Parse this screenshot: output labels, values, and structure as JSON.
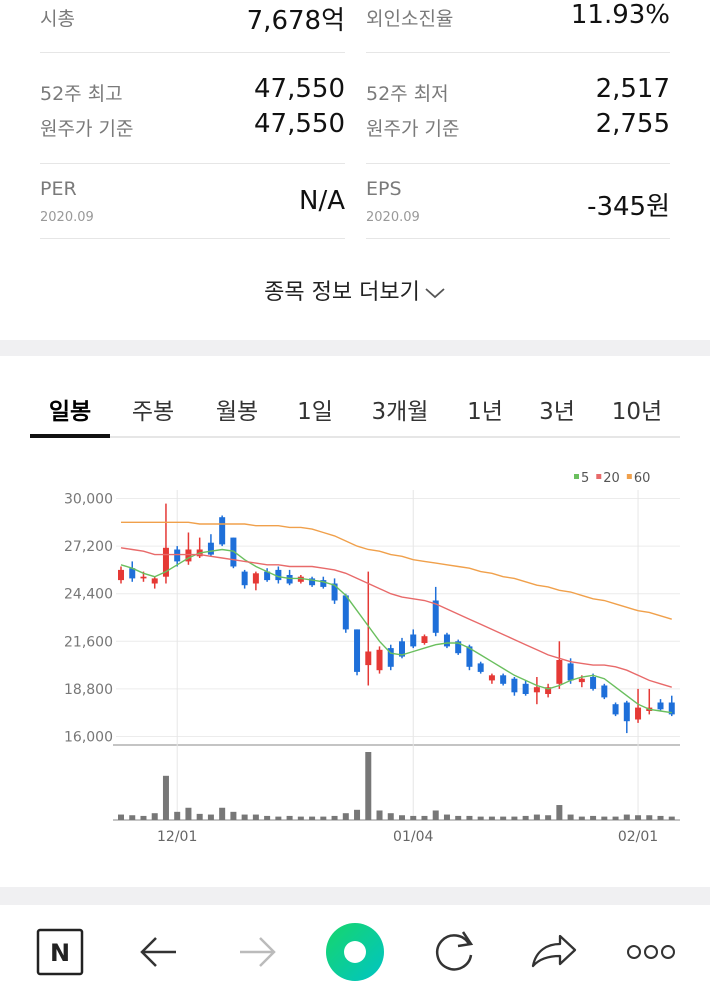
{
  "info": [
    {
      "label": "시총",
      "value": "7,678억"
    },
    {
      "label": "외인소진율",
      "value": "11.93%"
    },
    {
      "label": "52주 최고",
      "value": "47,550",
      "sub_label": "원주가 기준",
      "sub_value": "47,550"
    },
    {
      "label": "52주 최저",
      "value": "2,517",
      "sub_label": "원주가 기준",
      "sub_value": "2,755"
    },
    {
      "label": "PER",
      "date": "2020.09",
      "value": "N/A"
    },
    {
      "label": "EPS",
      "date": "2020.09",
      "value": "-345원"
    }
  ],
  "more": "종목 정보 더보기",
  "tabs": [
    "일봉",
    "주봉",
    "월봉",
    "1일",
    "3개월",
    "1년",
    "3년",
    "10년"
  ],
  "selected_tab": 0,
  "nav_logo": "N",
  "chart_data": {
    "type": "candlestick",
    "categories": [
      null,
      null,
      null,
      null,
      null,
      "12/01",
      null,
      null,
      null,
      null,
      null,
      null,
      null,
      null,
      null,
      null,
      null,
      null,
      null,
      null,
      null,
      null,
      null,
      null,
      null,
      null,
      "01/04",
      null,
      null,
      null,
      null,
      null,
      null,
      null,
      null,
      null,
      null,
      null,
      null,
      null,
      null,
      null,
      null,
      null,
      null,
      null,
      "02/01",
      null,
      null,
      null
    ],
    "candles": [
      [
        25200,
        26000,
        25000,
        25800
      ],
      [
        25900,
        26300,
        25100,
        25300
      ],
      [
        25300,
        25700,
        25100,
        25400
      ],
      [
        25000,
        25400,
        24700,
        25300
      ],
      [
        25400,
        29700,
        25000,
        27100
      ],
      [
        27000,
        27200,
        26000,
        26300
      ],
      [
        26300,
        28000,
        26100,
        27000
      ],
      [
        26600,
        27700,
        26500,
        27000
      ],
      [
        27400,
        27900,
        26600,
        26700
      ],
      [
        28900,
        29000,
        27200,
        27300
      ],
      [
        27700,
        27700,
        25900,
        26000
      ],
      [
        25700,
        25800,
        24700,
        24900
      ],
      [
        25000,
        25700,
        24600,
        25600
      ],
      [
        25700,
        25900,
        25100,
        25200
      ],
      [
        25800,
        26000,
        25000,
        25200
      ],
      [
        25500,
        25800,
        24900,
        25000
      ],
      [
        25100,
        25500,
        25000,
        25400
      ],
      [
        25300,
        25400,
        24800,
        24900
      ],
      [
        25200,
        25400,
        24700,
        24800
      ],
      [
        25000,
        25300,
        23800,
        24000
      ],
      [
        24300,
        24400,
        22100,
        22300
      ],
      [
        22300,
        22300,
        19600,
        19800
      ],
      [
        20200,
        25700,
        19000,
        21000
      ],
      [
        19900,
        21300,
        19700,
        21100
      ],
      [
        21200,
        21400,
        19900,
        20100
      ],
      [
        21600,
        21800,
        20600,
        20700
      ],
      [
        22000,
        22300,
        21200,
        21300
      ],
      [
        21500,
        22000,
        21400,
        21900
      ],
      [
        24000,
        24800,
        21900,
        22100
      ],
      [
        22000,
        22100,
        21200,
        21300
      ],
      [
        21600,
        21700,
        20800,
        20900
      ],
      [
        21300,
        21400,
        19900,
        20100
      ],
      [
        20300,
        20400,
        19700,
        19800
      ],
      [
        19300,
        19700,
        19100,
        19600
      ],
      [
        19600,
        19700,
        19000,
        19100
      ],
      [
        19400,
        19500,
        18400,
        18600
      ],
      [
        19100,
        19300,
        18400,
        18500
      ],
      [
        18600,
        19500,
        17900,
        18900
      ],
      [
        18500,
        19100,
        18300,
        18900
      ],
      [
        19100,
        21600,
        18800,
        20500
      ],
      [
        20300,
        20600,
        19100,
        19300
      ],
      [
        19200,
        19600,
        18900,
        19400
      ],
      [
        19500,
        19700,
        18700,
        18800
      ],
      [
        19000,
        19100,
        18200,
        18300
      ],
      [
        17900,
        18000,
        17200,
        17300
      ],
      [
        18000,
        18100,
        16200,
        16900
      ],
      [
        17000,
        18800,
        16800,
        17700
      ],
      [
        17500,
        18800,
        17300,
        17700
      ],
      [
        18000,
        18200,
        17500,
        17600
      ],
      [
        18000,
        18400,
        17200,
        17300
      ]
    ],
    "up_color": "#e53935",
    "down_color": "#1e6fd9",
    "series": [
      {
        "name": "5",
        "color": "#6abf5e",
        "values": [
          26100,
          25900,
          25600,
          25400,
          25700,
          26100,
          26500,
          26800,
          26900,
          27000,
          26900,
          26400,
          26000,
          25700,
          25400,
          25300,
          25300,
          25200,
          25100,
          24900,
          24300,
          23400,
          22500,
          21600,
          20900,
          20800,
          21000,
          21200,
          21400,
          21500,
          21500,
          21200,
          20800,
          20400,
          20000,
          19600,
          19300,
          19000,
          18800,
          19000,
          19300,
          19500,
          19600,
          19400,
          18900,
          18400,
          17900,
          17600,
          17500,
          17400
        ]
      },
      {
        "name": "20",
        "color": "#e86a6a",
        "values": [
          27100,
          27000,
          26900,
          26700,
          26700,
          26700,
          26700,
          26700,
          26600,
          26500,
          26400,
          26300,
          26200,
          26100,
          26100,
          26000,
          26000,
          26000,
          25900,
          25800,
          25600,
          25300,
          25000,
          24700,
          24400,
          24200,
          24100,
          24000,
          23800,
          23500,
          23200,
          22900,
          22600,
          22300,
          22000,
          21700,
          21400,
          21100,
          20800,
          20600,
          20400,
          20300,
          20200,
          20200,
          20100,
          19900,
          19600,
          19300,
          19100,
          18900
        ]
      },
      {
        "name": "60",
        "color": "#f0a04b",
        "values": [
          28600,
          28600,
          28600,
          28600,
          28600,
          28600,
          28600,
          28500,
          28500,
          28500,
          28500,
          28500,
          28400,
          28400,
          28400,
          28300,
          28300,
          28200,
          28000,
          27800,
          27500,
          27200,
          27000,
          26900,
          26700,
          26600,
          26400,
          26300,
          26200,
          26100,
          26000,
          25900,
          25700,
          25600,
          25400,
          25300,
          25100,
          24900,
          24800,
          24600,
          24500,
          24300,
          24100,
          24000,
          23800,
          23600,
          23400,
          23300,
          23100,
          22900
        ]
      }
    ],
    "volume": [
      8,
      7,
      6,
      10,
      65,
      12,
      18,
      9,
      8,
      18,
      12,
      8,
      8,
      6,
      5,
      6,
      5,
      5,
      5,
      6,
      10,
      15,
      100,
      14,
      10,
      7,
      6,
      6,
      14,
      8,
      6,
      6,
      5,
      5,
      5,
      5,
      6,
      8,
      7,
      22,
      8,
      5,
      6,
      5,
      5,
      8,
      7,
      7,
      6,
      5
    ],
    "volume_color": "#777777",
    "ylim": [
      15500,
      30500
    ],
    "yticks": [
      {
        "value": 16000,
        "label": "16,000"
      },
      {
        "value": 18800,
        "label": "18,800"
      },
      {
        "value": 21600,
        "label": "21,600"
      },
      {
        "value": 24400,
        "label": "24,400"
      },
      {
        "value": 27200,
        "label": "27,200"
      },
      {
        "value": 30000,
        "label": "30,000"
      }
    ],
    "grid": true
  }
}
